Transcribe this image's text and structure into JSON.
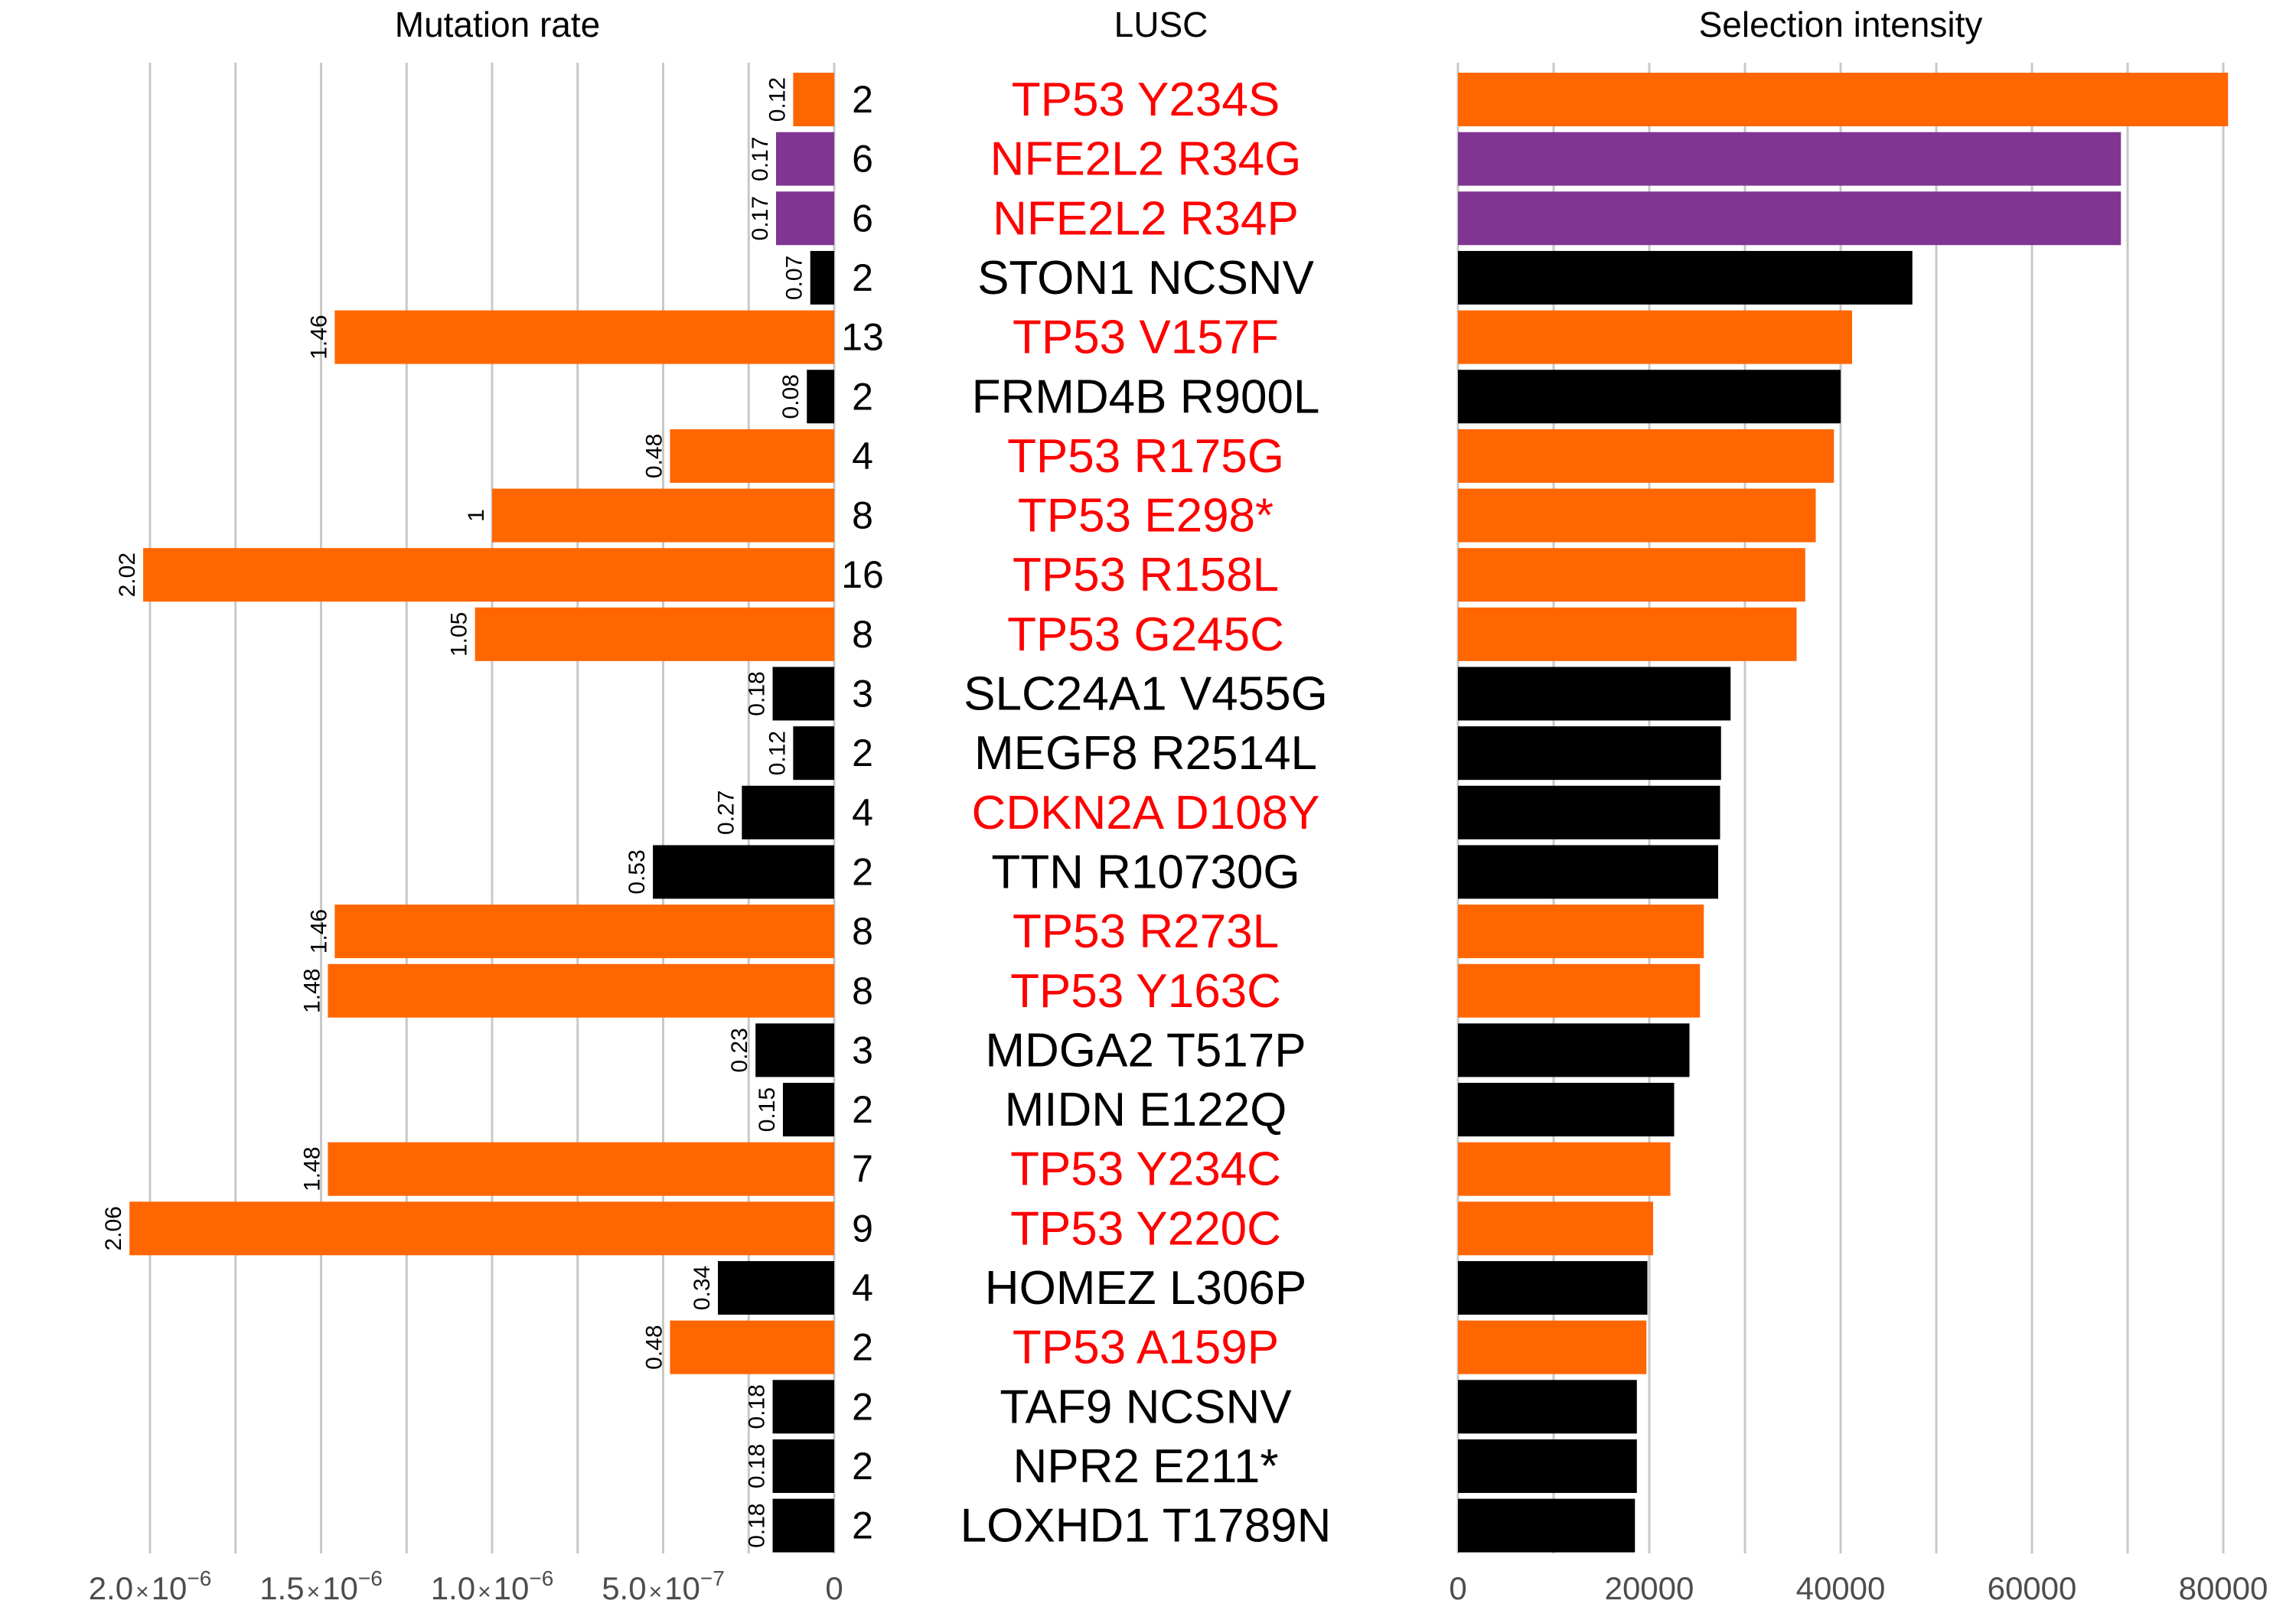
{
  "chart_data": {
    "type": "bar",
    "panels": {
      "left_title": "Mutation rate",
      "middle_title": "LUSC",
      "right_title": "Selection intensity"
    },
    "colors": {
      "orange": "#FF6600",
      "purple": "#7F3591",
      "black": "#000000",
      "red_label": "#FF0000",
      "black_label": "#000000",
      "grid": "#C8C8C8"
    },
    "mutation_rate_axis": {
      "max": 2.1e-06,
      "ticks": [
        {
          "value": 2e-06,
          "mantissa": "2.0",
          "base": "10",
          "exp": "−6"
        },
        {
          "value": 1.5e-06,
          "mantissa": "1.5",
          "base": "10",
          "exp": "−6"
        },
        {
          "value": 1e-06,
          "mantissa": "1.0",
          "base": "10",
          "exp": "−6"
        },
        {
          "value": 5e-07,
          "mantissa": "5.0",
          "base": "10",
          "exp": "−7"
        },
        {
          "value": 0,
          "label": "0"
        }
      ]
    },
    "selection_axis": {
      "max": 85000,
      "ticks": [
        0,
        20000,
        40000,
        60000,
        80000
      ],
      "tick_labels": [
        "0",
        "20000",
        "40000",
        "60000",
        "80000"
      ]
    },
    "rows": [
      {
        "label": "TP53 Y234S",
        "count": "2",
        "rate_label": "0.12",
        "rate": 1.2e-07,
        "selection": 80500,
        "color": "orange",
        "label_color": "red_label"
      },
      {
        "label": "NFE2L2 R34G",
        "count": "6",
        "rate_label": "0.17",
        "rate": 1.7e-07,
        "selection": 69300,
        "color": "purple",
        "label_color": "red_label"
      },
      {
        "label": "NFE2L2 R34P",
        "count": "6",
        "rate_label": "0.17",
        "rate": 1.7e-07,
        "selection": 69300,
        "color": "purple",
        "label_color": "red_label"
      },
      {
        "label": "STON1 NCSNV",
        "count": "2",
        "rate_label": "0.07",
        "rate": 7e-08,
        "selection": 47500,
        "color": "black",
        "label_color": "black_label"
      },
      {
        "label": "TP53 V157F",
        "count": "13",
        "rate_label": "1.46",
        "rate": 1.46e-06,
        "selection": 41200,
        "color": "orange",
        "label_color": "red_label"
      },
      {
        "label": "FRMD4B R900L",
        "count": "2",
        "rate_label": "0.08",
        "rate": 8e-08,
        "selection": 40000,
        "color": "black",
        "label_color": "black_label"
      },
      {
        "label": "TP53 R175G",
        "count": "4",
        "rate_label": "0.48",
        "rate": 4.8e-07,
        "selection": 39300,
        "color": "orange",
        "label_color": "red_label"
      },
      {
        "label": "TP53 E298*",
        "count": "8",
        "rate_label": "1",
        "rate": 1e-06,
        "selection": 37400,
        "color": "orange",
        "label_color": "red_label"
      },
      {
        "label": "TP53 R158L",
        "count": "16",
        "rate_label": "2.02",
        "rate": 2.02e-06,
        "selection": 36300,
        "color": "orange",
        "label_color": "red_label"
      },
      {
        "label": "TP53 G245C",
        "count": "8",
        "rate_label": "1.05",
        "rate": 1.05e-06,
        "selection": 35400,
        "color": "orange",
        "label_color": "red_label"
      },
      {
        "label": "SLC24A1 V455G",
        "count": "3",
        "rate_label": "0.18",
        "rate": 1.8e-07,
        "selection": 28500,
        "color": "black",
        "label_color": "black_label"
      },
      {
        "label": "MEGF8 R2514L",
        "count": "2",
        "rate_label": "0.12",
        "rate": 1.2e-07,
        "selection": 27500,
        "color": "black",
        "label_color": "black_label"
      },
      {
        "label": "CDKN2A D108Y",
        "count": "4",
        "rate_label": "0.27",
        "rate": 2.7e-07,
        "selection": 27400,
        "color": "black",
        "label_color": "red_label"
      },
      {
        "label": "TTN R10730G",
        "count": "2",
        "rate_label": "0.53",
        "rate": 5.3e-07,
        "selection": 27200,
        "color": "black",
        "label_color": "black_label"
      },
      {
        "label": "TP53 R273L",
        "count": "8",
        "rate_label": "1.46",
        "rate": 1.46e-06,
        "selection": 25700,
        "color": "orange",
        "label_color": "red_label"
      },
      {
        "label": "TP53 Y163C",
        "count": "8",
        "rate_label": "1.48",
        "rate": 1.48e-06,
        "selection": 25300,
        "color": "orange",
        "label_color": "red_label"
      },
      {
        "label": "MDGA2 T517P",
        "count": "3",
        "rate_label": "0.23",
        "rate": 2.3e-07,
        "selection": 24200,
        "color": "black",
        "label_color": "black_label"
      },
      {
        "label": "MIDN E122Q",
        "count": "2",
        "rate_label": "0.15",
        "rate": 1.5e-07,
        "selection": 22600,
        "color": "black",
        "label_color": "black_label"
      },
      {
        "label": "TP53 Y234C",
        "count": "7",
        "rate_label": "1.48",
        "rate": 1.48e-06,
        "selection": 22200,
        "color": "orange",
        "label_color": "red_label"
      },
      {
        "label": "TP53 Y220C",
        "count": "9",
        "rate_label": "2.06",
        "rate": 2.06e-06,
        "selection": 20400,
        "color": "orange",
        "label_color": "red_label"
      },
      {
        "label": "HOMEZ L306P",
        "count": "4",
        "rate_label": "0.34",
        "rate": 3.4e-07,
        "selection": 19800,
        "color": "black",
        "label_color": "black_label"
      },
      {
        "label": "TP53 A159P",
        "count": "2",
        "rate_label": "0.48",
        "rate": 4.8e-07,
        "selection": 19700,
        "color": "orange",
        "label_color": "red_label"
      },
      {
        "label": "TAF9 NCSNV",
        "count": "2",
        "rate_label": "0.18",
        "rate": 1.8e-07,
        "selection": 18700,
        "color": "black",
        "label_color": "black_label"
      },
      {
        "label": "NPR2 E211*",
        "count": "2",
        "rate_label": "0.18",
        "rate": 1.8e-07,
        "selection": 18700,
        "color": "black",
        "label_color": "black_label"
      },
      {
        "label": "LOXHD1 T1789N",
        "count": "2",
        "rate_label": "0.18",
        "rate": 1.8e-07,
        "selection": 18500,
        "color": "black",
        "label_color": "black_label"
      }
    ]
  }
}
